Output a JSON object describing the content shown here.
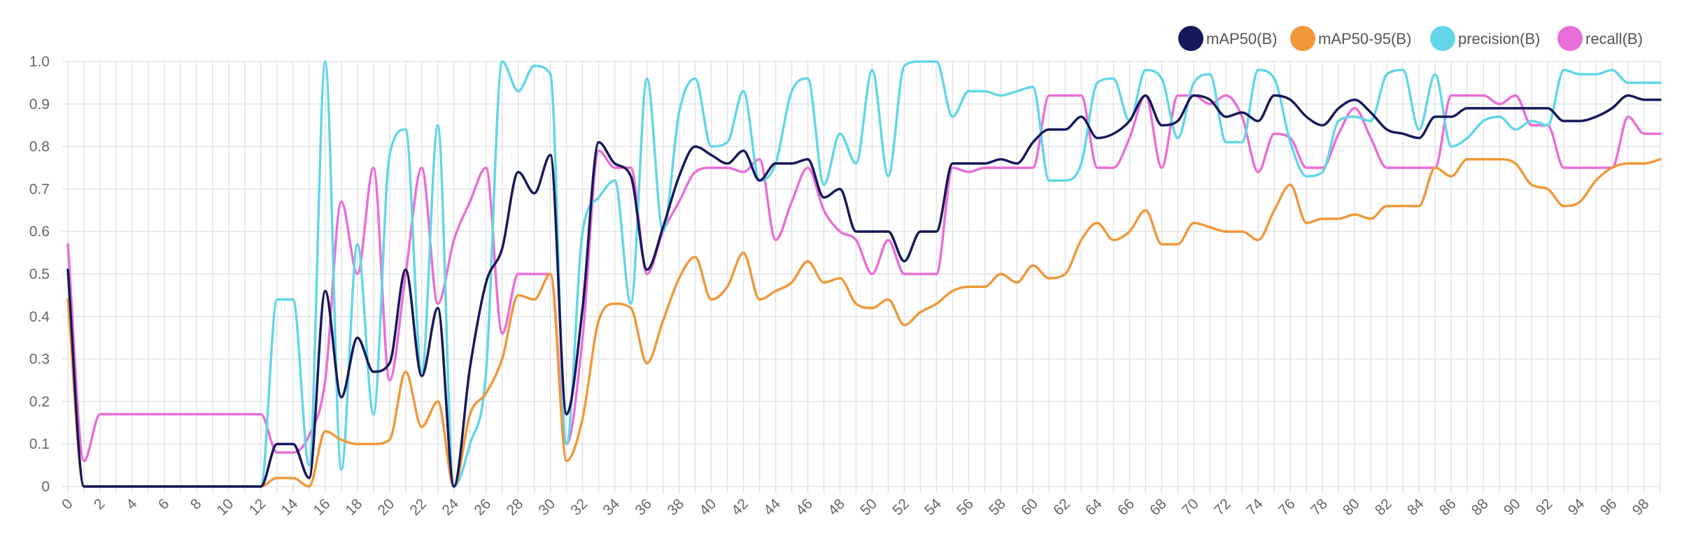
{
  "chart_data": {
    "type": "line",
    "title": "",
    "xlabel": "",
    "ylabel": "",
    "xlim": [
      0,
      99
    ],
    "ylim": [
      0,
      1.0
    ],
    "grid": true,
    "legend_position": "top-right",
    "y_ticks": [
      "0",
      "0.1",
      "0.2",
      "0.3",
      "0.4",
      "0.5",
      "0.6",
      "0.7",
      "0.8",
      "0.9",
      "1.0"
    ],
    "x_ticks": [
      "0",
      "2",
      "4",
      "6",
      "8",
      "10",
      "12",
      "14",
      "16",
      "18",
      "20",
      "22",
      "24",
      "26",
      "28",
      "30",
      "32",
      "34",
      "36",
      "38",
      "40",
      "42",
      "44",
      "46",
      "48",
      "50",
      "52",
      "54",
      "56",
      "58",
      "60",
      "62",
      "64",
      "66",
      "68",
      "70",
      "72",
      "74",
      "76",
      "78",
      "80",
      "82",
      "84",
      "86",
      "88",
      "90",
      "92",
      "94",
      "96",
      "98"
    ],
    "x": [
      0,
      1,
      2,
      3,
      4,
      5,
      6,
      7,
      8,
      9,
      10,
      11,
      12,
      13,
      14,
      15,
      16,
      17,
      18,
      19,
      20,
      21,
      22,
      23,
      24,
      25,
      26,
      27,
      28,
      29,
      30,
      31,
      32,
      33,
      34,
      35,
      36,
      37,
      38,
      39,
      40,
      41,
      42,
      43,
      44,
      45,
      46,
      47,
      48,
      49,
      50,
      51,
      52,
      53,
      54,
      55,
      56,
      57,
      58,
      59,
      60,
      61,
      62,
      63,
      64,
      65,
      66,
      67,
      68,
      69,
      70,
      71,
      72,
      73,
      74,
      75,
      76,
      77,
      78,
      79,
      80,
      81,
      82,
      83,
      84,
      85,
      86,
      87,
      88,
      89,
      90,
      91,
      92,
      93,
      94,
      95,
      96,
      97,
      98,
      99
    ],
    "series": [
      {
        "name": "mAP50(B)",
        "color": "#15185a",
        "values": [
          0.51,
          0.0,
          0.0,
          0.0,
          0.0,
          0.0,
          0.0,
          0.0,
          0.0,
          0.0,
          0.0,
          0.0,
          0.0,
          0.1,
          0.1,
          0.02,
          0.46,
          0.21,
          0.35,
          0.27,
          0.29,
          0.51,
          0.26,
          0.42,
          0.0,
          0.28,
          0.48,
          0.56,
          0.74,
          0.69,
          0.78,
          0.17,
          0.42,
          0.81,
          0.76,
          0.73,
          0.51,
          0.61,
          0.73,
          0.8,
          0.78,
          0.76,
          0.79,
          0.72,
          0.76,
          0.76,
          0.77,
          0.68,
          0.7,
          0.6,
          0.6,
          0.6,
          0.53,
          0.6,
          0.6,
          0.76,
          0.76,
          0.76,
          0.77,
          0.76,
          0.81,
          0.84,
          0.84,
          0.87,
          0.82,
          0.83,
          0.86,
          0.92,
          0.85,
          0.86,
          0.92,
          0.91,
          0.87,
          0.88,
          0.86,
          0.92,
          0.91,
          0.87,
          0.85,
          0.89,
          0.91,
          0.88,
          0.84,
          0.83,
          0.82,
          0.87,
          0.87,
          0.89,
          0.89,
          0.89,
          0.89,
          0.89,
          0.89,
          0.86,
          0.86,
          0.87,
          0.89,
          0.92,
          0.91,
          0.91
        ]
      },
      {
        "name": "mAP50-95(B)",
        "color": "#f0983a",
        "values": [
          0.44,
          0.0,
          0.0,
          0.0,
          0.0,
          0.0,
          0.0,
          0.0,
          0.0,
          0.0,
          0.0,
          0.0,
          0.0,
          0.02,
          0.02,
          0.0,
          0.13,
          0.11,
          0.1,
          0.1,
          0.11,
          0.27,
          0.14,
          0.2,
          0.0,
          0.17,
          0.22,
          0.3,
          0.45,
          0.44,
          0.5,
          0.06,
          0.16,
          0.39,
          0.43,
          0.42,
          0.29,
          0.39,
          0.49,
          0.54,
          0.44,
          0.47,
          0.55,
          0.44,
          0.46,
          0.48,
          0.53,
          0.48,
          0.49,
          0.43,
          0.42,
          0.44,
          0.38,
          0.41,
          0.43,
          0.46,
          0.47,
          0.47,
          0.5,
          0.48,
          0.52,
          0.49,
          0.5,
          0.58,
          0.62,
          0.58,
          0.6,
          0.65,
          0.57,
          0.57,
          0.62,
          0.61,
          0.6,
          0.6,
          0.58,
          0.65,
          0.71,
          0.62,
          0.63,
          0.63,
          0.64,
          0.63,
          0.66,
          0.66,
          0.66,
          0.75,
          0.73,
          0.77,
          0.77,
          0.77,
          0.76,
          0.71,
          0.7,
          0.66,
          0.67,
          0.72,
          0.75,
          0.76,
          0.76,
          0.77
        ]
      },
      {
        "name": "precision(B)",
        "color": "#62d6e8",
        "values": [
          0.51,
          0.0,
          0.0,
          0.0,
          0.0,
          0.0,
          0.0,
          0.0,
          0.0,
          0.0,
          0.0,
          0.0,
          0.0,
          0.44,
          0.44,
          0.05,
          1.0,
          0.04,
          0.57,
          0.17,
          0.78,
          0.84,
          0.27,
          0.85,
          0.0,
          0.1,
          0.27,
          1.0,
          0.93,
          0.99,
          0.97,
          0.1,
          0.6,
          0.68,
          0.72,
          0.43,
          0.96,
          0.6,
          0.88,
          0.96,
          0.8,
          0.81,
          0.93,
          0.72,
          0.76,
          0.93,
          0.96,
          0.71,
          0.83,
          0.76,
          0.98,
          0.73,
          0.99,
          1.0,
          1.0,
          0.87,
          0.93,
          0.93,
          0.92,
          0.93,
          0.94,
          0.72,
          0.72,
          0.76,
          0.95,
          0.96,
          0.86,
          0.98,
          0.96,
          0.82,
          0.95,
          0.97,
          0.81,
          0.81,
          0.98,
          0.96,
          0.81,
          0.73,
          0.74,
          0.86,
          0.87,
          0.86,
          0.97,
          0.98,
          0.84,
          0.97,
          0.8,
          0.82,
          0.86,
          0.87,
          0.84,
          0.86,
          0.85,
          0.98,
          0.97,
          0.97,
          0.98,
          0.95,
          0.95,
          0.95
        ]
      },
      {
        "name": "recall(B)",
        "color": "#ea6ed8",
        "values": [
          0.57,
          0.06,
          0.17,
          0.17,
          0.17,
          0.17,
          0.17,
          0.17,
          0.17,
          0.17,
          0.17,
          0.17,
          0.17,
          0.08,
          0.08,
          0.12,
          0.25,
          0.67,
          0.5,
          0.75,
          0.25,
          0.5,
          0.75,
          0.43,
          0.58,
          0.67,
          0.75,
          0.36,
          0.5,
          0.5,
          0.5,
          0.1,
          0.35,
          0.79,
          0.75,
          0.75,
          0.5,
          0.6,
          0.67,
          0.74,
          0.75,
          0.75,
          0.74,
          0.77,
          0.58,
          0.67,
          0.75,
          0.65,
          0.6,
          0.58,
          0.5,
          0.58,
          0.5,
          0.5,
          0.5,
          0.75,
          0.74,
          0.75,
          0.75,
          0.75,
          0.75,
          0.92,
          0.92,
          0.92,
          0.75,
          0.75,
          0.82,
          0.92,
          0.75,
          0.92,
          0.92,
          0.9,
          0.92,
          0.87,
          0.74,
          0.83,
          0.82,
          0.75,
          0.75,
          0.83,
          0.89,
          0.82,
          0.75,
          0.75,
          0.75,
          0.75,
          0.92,
          0.92,
          0.92,
          0.9,
          0.92,
          0.85,
          0.85,
          0.75,
          0.75,
          0.75,
          0.75,
          0.87,
          0.83,
          0.83
        ]
      }
    ]
  }
}
